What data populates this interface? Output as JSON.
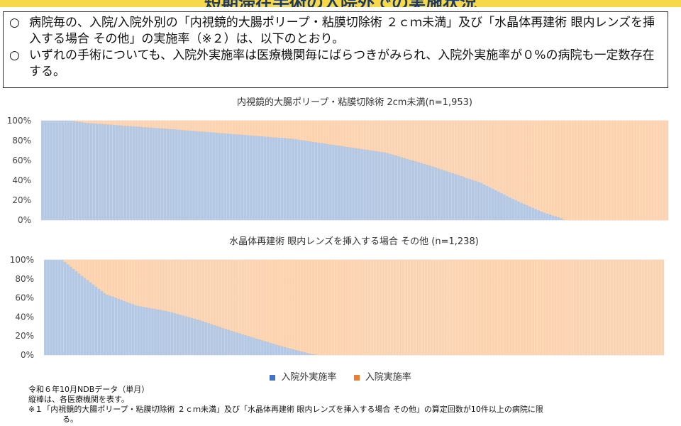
{
  "banner": {
    "title": "短期滞在手術の入院外での実施状況"
  },
  "textbox": {
    "bullets": [
      {
        "marker": "○",
        "text": "病院毎の、入院/入院外別の「内視鏡的大腸ポリープ・粘膜切除術 ２ｃｍ未満」及び「水晶体再建術 眼内レンズを挿入する場合 その他」の実施率（※２）は、以下のとおり。"
      },
      {
        "marker": "○",
        "text": "いずれの手術についても、入院外実施率は医療機関毎にばらつきがみられ、入院外実施率が０%の病院も一定数存在する。"
      }
    ]
  },
  "colors": {
    "outpatient": "#b4c8e4",
    "inpatient": "#fbd3b1",
    "legend_outpatient": "#4472c4",
    "legend_inpatient": "#ed7d31"
  },
  "chart_data": [
    {
      "type": "bar",
      "stacked": true,
      "title": "内視鏡的大腸ポリープ・粘膜切除術 2cm未満(n=1,953)",
      "n": 1953,
      "y_ticks": [
        "0%",
        "20%",
        "40%",
        "60%",
        "80%",
        "100%"
      ],
      "ylim": [
        0,
        100
      ],
      "series_names": [
        "入院外実施率",
        "入院実施率"
      ],
      "outpatient_rate_profile": {
        "x_fraction": [
          0,
          0.05,
          0.07,
          0.2,
          0.4,
          0.55,
          0.62,
          0.7,
          0.75,
          0.8,
          0.83,
          0.835,
          1.0
        ],
        "y_percent": [
          100,
          100,
          98,
          92,
          82,
          68,
          55,
          38,
          22,
          8,
          2,
          0,
          0
        ]
      }
    },
    {
      "type": "bar",
      "stacked": true,
      "title": "水晶体再建術 眼内レンズを挿入する場合 その他 (n=1,238)",
      "n": 1238,
      "y_ticks": [
        "0%",
        "20%",
        "40%",
        "60%",
        "80%",
        "100%"
      ],
      "ylim": [
        0,
        100
      ],
      "series_names": [
        "入院外実施率",
        "入院実施率"
      ],
      "outpatient_rate_profile": {
        "x_fraction": [
          0,
          0.03,
          0.06,
          0.1,
          0.15,
          0.2,
          0.25,
          0.3,
          0.35,
          0.38,
          0.42,
          0.44,
          1.0
        ],
        "y_percent": [
          100,
          100,
          84,
          64,
          52,
          46,
          37,
          26,
          16,
          10,
          3,
          0,
          0
        ]
      }
    }
  ],
  "legend": {
    "items": [
      "入院外実施率",
      "入院実施率"
    ]
  },
  "notes": {
    "line1": "令和６年10月NDBデータ（単月）",
    "line2": "縦棒は、各医療機関を表す。",
    "line3": "※１「内視鏡的大腸ポリープ・粘膜切除術 ２ｃｍ未満」及び「水晶体再建術 眼内レンズを挿入する場合 その他」の算定回数が10件以上の病院に限",
    "line4": "る。"
  }
}
